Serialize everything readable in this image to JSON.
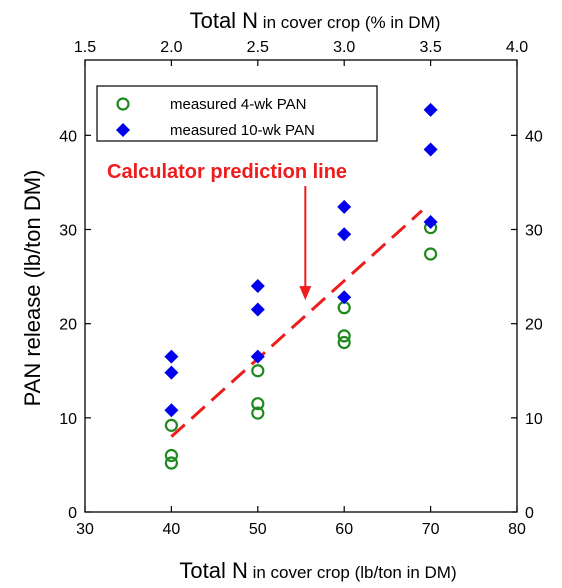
{
  "chart_data": {
    "type": "scatter",
    "x": {
      "title_main": "Total N",
      "title_rest": " in cover crop (lb/ton in DM)",
      "lim": [
        30,
        80
      ],
      "ticks": [
        30,
        40,
        50,
        60,
        70,
        80
      ]
    },
    "x_top": {
      "title_main": "Total N",
      "title_rest": " in cover crop (% in DM)",
      "lim": [
        1.5,
        4.0
      ],
      "ticks": [
        "1.5",
        "2.0",
        "2.5",
        "3.0",
        "3.5",
        "4.0"
      ]
    },
    "y": {
      "title": "PAN release (lb/ton DM)",
      "lim": [
        0,
        48
      ],
      "ticks": [
        0,
        10,
        20,
        30,
        40
      ]
    },
    "series": [
      {
        "name": "measured 4-wk PAN",
        "marker": "open-circle",
        "color": "#1e8a1e",
        "points": [
          [
            40,
            9.2
          ],
          [
            40,
            6.0
          ],
          [
            40,
            5.2
          ],
          [
            50,
            15.0
          ],
          [
            50,
            11.5
          ],
          [
            50,
            10.5
          ],
          [
            60,
            21.7
          ],
          [
            60,
            18.7
          ],
          [
            60,
            18.0
          ],
          [
            70,
            30.2
          ],
          [
            70,
            27.4
          ]
        ]
      },
      {
        "name": "measured 10-wk PAN",
        "marker": "filled-diamond",
        "color": "#0000ee",
        "points": [
          [
            40,
            16.5
          ],
          [
            40,
            14.8
          ],
          [
            40,
            10.8
          ],
          [
            50,
            24.0
          ],
          [
            50,
            21.5
          ],
          [
            50,
            16.5
          ],
          [
            60,
            32.4
          ],
          [
            60,
            29.5
          ],
          [
            60,
            22.8
          ],
          [
            70,
            42.7
          ],
          [
            70,
            38.5
          ],
          [
            70,
            30.8
          ]
        ]
      }
    ],
    "prediction_line": {
      "color": "#ee1c1c",
      "points": [
        [
          40,
          8.0
        ],
        [
          69,
          32.0
        ]
      ]
    },
    "annotation": {
      "text": "Calculator prediction line",
      "color": "#ee1c1c",
      "arrow_target": [
        55.5,
        22.5
      ]
    },
    "legend_position": "top-left",
    "grid": false
  }
}
